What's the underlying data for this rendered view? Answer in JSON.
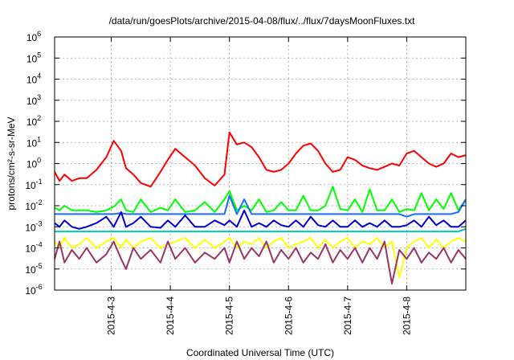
{
  "chart_data": {
    "type": "line",
    "title": "/data/run/goesPlots/archive/2015-04-08/flux/../flux/7daysMoonFluxes.txt",
    "xlabel": "Coordinated Universal Time (UTC)",
    "ylabel": "protons/cm²-s-sr-MeV",
    "y_scale": "log",
    "ylim": [
      1e-06,
      1000000.0
    ],
    "xlim": [
      "2015-04-02T01:00",
      "2015-04-09T00:00"
    ],
    "grid": true,
    "legend": "none",
    "x_ticks": [
      "2015-4-3",
      "2015-4-4",
      "2015-4-5",
      "2015-4-6",
      "2015-4-7",
      "2015-4-8"
    ],
    "y_ticks": [
      "10-6",
      "10-5",
      "10-4",
      "10-3",
      "10-2",
      "10-1",
      "100",
      "101",
      "102",
      "103",
      "104",
      "105",
      "106"
    ],
    "y_tick_exponents": [
      -6,
      -5,
      -4,
      -3,
      -2,
      -1,
      0,
      1,
      2,
      3,
      4,
      5,
      6
    ],
    "x": [
      "2015-04-02T01:00",
      "2015-04-02T03:00",
      "2015-04-02T05:00",
      "2015-04-02T08:00",
      "2015-04-02T11:00",
      "2015-04-02T14:00",
      "2015-04-02T18:00",
      "2015-04-02T22:00",
      "2015-04-03T01:00",
      "2015-04-03T04:00",
      "2015-04-03T06:00",
      "2015-04-03T09:00",
      "2015-04-03T12:00",
      "2015-04-03T16:00",
      "2015-04-03T20:00",
      "2015-04-03T23:00",
      "2015-04-04T02:00",
      "2015-04-04T06:00",
      "2015-04-04T10:00",
      "2015-04-04T14:00",
      "2015-04-04T18:00",
      "2015-04-04T22:00",
      "2015-04-05T00:00",
      "2015-04-05T03:00",
      "2015-04-05T06:00",
      "2015-04-05T09:00",
      "2015-04-05T12:00",
      "2015-04-05T15:00",
      "2015-04-05T18:00",
      "2015-04-05T21:00",
      "2015-04-06T00:00",
      "2015-04-06T03:00",
      "2015-04-06T06:00",
      "2015-04-06T09:00",
      "2015-04-06T12:00",
      "2015-04-06T15:00",
      "2015-04-06T18:00",
      "2015-04-06T21:00",
      "2015-04-07T00:00",
      "2015-04-07T03:00",
      "2015-04-07T06:00",
      "2015-04-07T09:00",
      "2015-04-07T12:00",
      "2015-04-07T15:00",
      "2015-04-07T18:00",
      "2015-04-07T21:00",
      "2015-04-08T00:00",
      "2015-04-08T03:00",
      "2015-04-08T06:00",
      "2015-04-08T09:00",
      "2015-04-08T12:00",
      "2015-04-08T15:00",
      "2015-04-08T18:00",
      "2015-04-08T21:00",
      "2015-04-09T00:00"
    ],
    "series": [
      {
        "color": "#ff0000",
        "values": [
          0.4,
          0.15,
          0.3,
          0.15,
          0.2,
          0.2,
          0.5,
          2,
          12,
          4,
          0.6,
          0.3,
          0.12,
          0.08,
          0.4,
          1.5,
          5,
          2,
          0.8,
          0.2,
          0.09,
          0.3,
          30,
          8,
          10,
          6,
          2,
          0.5,
          0.4,
          0.5,
          1,
          3,
          7,
          9,
          4,
          1,
          0.4,
          0.5,
          2,
          1.5,
          0.8,
          0.6,
          0.5,
          0.7,
          1,
          0.8,
          3,
          4,
          2,
          1,
          0.7,
          1,
          3,
          2,
          2.5
        ]
      },
      {
        "color": "#00ff00",
        "values": [
          0.008,
          0.006,
          0.01,
          0.006,
          0.006,
          0.006,
          0.005,
          0.006,
          0.009,
          0.02,
          0.006,
          0.005,
          0.02,
          0.005,
          0.008,
          0.006,
          0.02,
          0.005,
          0.006,
          0.015,
          0.005,
          0.02,
          0.05,
          0.006,
          0.01,
          0.006,
          0.02,
          0.005,
          0.006,
          0.015,
          0.006,
          0.006,
          0.03,
          0.006,
          0.006,
          0.01,
          0.08,
          0.007,
          0.006,
          0.02,
          0.005,
          0.06,
          0.006,
          0.006,
          0.02,
          0.005,
          0.007,
          0.006,
          0.04,
          0.006,
          0.02,
          0.007,
          0.04,
          0.006,
          0.02
        ]
      },
      {
        "color": "#1a6cff",
        "values": [
          0.004,
          0.004,
          0.004,
          0.004,
          0.004,
          0.004,
          0.004,
          0.004,
          0.004,
          0.0045,
          0.004,
          0.004,
          0.004,
          0.004,
          0.004,
          0.004,
          0.004,
          0.004,
          0.004,
          0.004,
          0.004,
          0.004,
          0.03,
          0.004,
          0.02,
          0.004,
          0.004,
          0.004,
          0.004,
          0.004,
          0.004,
          0.004,
          0.004,
          0.004,
          0.004,
          0.004,
          0.004,
          0.004,
          0.004,
          0.004,
          0.004,
          0.004,
          0.004,
          0.004,
          0.004,
          0.004,
          0.003,
          0.004,
          0.004,
          0.004,
          0.004,
          0.004,
          0.004,
          0.005,
          0.02
        ]
      },
      {
        "color": "#0000cc",
        "values": [
          0.0015,
          0.001,
          0.002,
          0.001,
          0.0008,
          0.001,
          0.0015,
          0.003,
          0.001,
          0.005,
          0.001,
          0.0015,
          0.003,
          0.001,
          0.0009,
          0.002,
          0.001,
          0.0035,
          0.001,
          0.001,
          0.002,
          0.0012,
          0.002,
          0.001,
          0.006,
          0.001,
          0.0015,
          0.001,
          0.002,
          0.0012,
          0.001,
          0.002,
          0.001,
          0.003,
          0.0012,
          0.001,
          0.002,
          0.001,
          0.001,
          0.002,
          0.001,
          0.0015,
          0.001,
          0.002,
          0.001,
          0.001,
          0.0012,
          0.002,
          0.001,
          0.003,
          0.0012,
          0.002,
          0.001,
          0.001,
          0.002
        ]
      },
      {
        "color": "#00c8b4",
        "values": [
          0.0006,
          0.0006,
          0.0006,
          0.0006,
          0.0006,
          0.0006,
          0.0006,
          0.0006,
          0.0006,
          0.0006,
          0.0006,
          0.0006,
          0.0006,
          0.0006,
          0.0006,
          0.0006,
          0.0006,
          0.0006,
          0.0006,
          0.0006,
          0.0006,
          0.0006,
          0.0006,
          0.0006,
          0.0006,
          0.0006,
          0.0006,
          0.0006,
          0.0006,
          0.0006,
          0.0006,
          0.0006,
          0.0006,
          0.0006,
          0.0006,
          0.0006,
          0.0006,
          0.0006,
          0.0006,
          0.0006,
          0.0006,
          0.0006,
          0.0006,
          0.0006,
          0.0006,
          0.0006,
          0.0006,
          0.0006,
          0.0006,
          0.0006,
          0.0006,
          0.0006,
          0.0006,
          0.0006,
          0.0008
        ]
      },
      {
        "color": "#ffff00",
        "values": [
          0.0002,
          0.0001,
          0.0003,
          0.0001,
          0.00015,
          0.0003,
          0.0001,
          0.0002,
          0.0003,
          0.0001,
          0.00025,
          0.0001,
          0.0002,
          0.0003,
          0.0001,
          0.00015,
          0.0002,
          0.0003,
          0.0001,
          0.00025,
          0.0001,
          0.0002,
          0.0003,
          0.0001,
          0.0002,
          0.00015,
          0.0003,
          0.0001,
          0.0002,
          0.0003,
          0.0001,
          0.00015,
          0.0002,
          0.0003,
          0.0001,
          0.00025,
          0.0001,
          0.0002,
          0.0003,
          0.0001,
          0.0002,
          0.00015,
          0.0003,
          0.0001,
          0.0002,
          4e-06,
          0.0001,
          0.0002,
          0.0003,
          0.0001,
          0.00025,
          0.0001,
          0.0002,
          0.0003,
          0.0002
        ]
      },
      {
        "color": "#993366",
        "values": [
          3e-05,
          0.0002,
          2e-05,
          8e-05,
          3e-05,
          0.0001,
          2e-05,
          5e-05,
          0.0002,
          3e-05,
          1e-05,
          0.0001,
          3e-05,
          8e-05,
          2e-05,
          0.0002,
          3e-05,
          0.0001,
          2e-05,
          6e-05,
          3e-05,
          0.0001,
          2e-05,
          0.0002,
          3e-05,
          0.0001,
          4e-05,
          0.0002,
          2e-05,
          8e-05,
          3e-05,
          0.0001,
          2e-05,
          6e-05,
          3e-05,
          0.00015,
          2e-05,
          8e-05,
          3e-05,
          0.0001,
          2e-05,
          0.0001,
          3e-05,
          0.0002,
          2e-06,
          8e-05,
          3e-05,
          0.0001,
          2e-05,
          6e-05,
          3e-05,
          0.0001,
          2e-05,
          8e-05,
          3e-05
        ]
      }
    ]
  }
}
